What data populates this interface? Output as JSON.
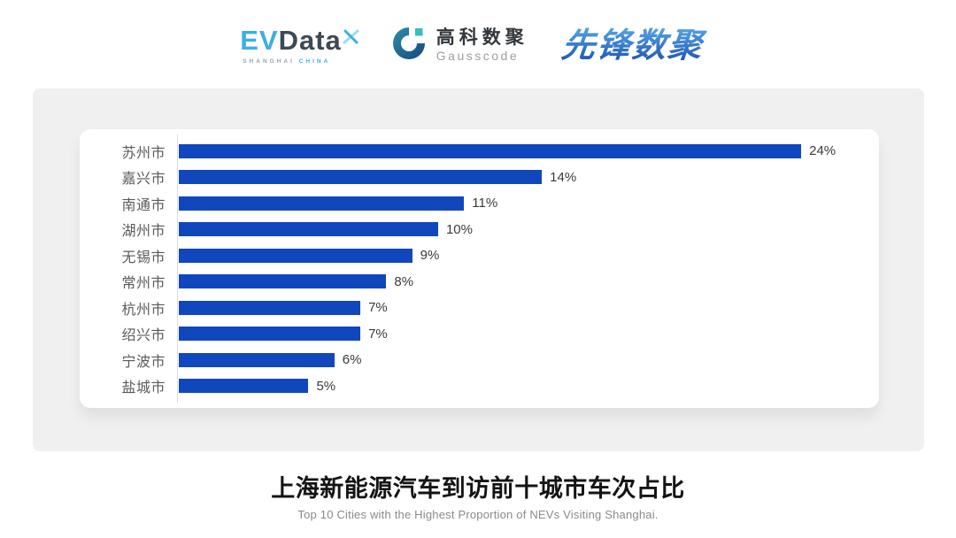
{
  "header": {
    "logos": {
      "evdata": {
        "wordmark_part1": "EV",
        "wordmark_part2": "Data",
        "subtext_part1": "SHANGHAI ",
        "subtext_part2": "CHINA",
        "color_ev": "#3BAFE2",
        "color_data": "#3D4A55"
      },
      "gausscode": {
        "name_cn": "高科数聚",
        "name_en": "Gausscode",
        "icon_color_dark": "#17477E",
        "icon_color_light": "#2C8FA8",
        "icon_accent": "#35C0BE"
      },
      "xianfeng": {
        "text": "先锋数聚",
        "color_top": "#55A4E2",
        "color_bottom": "#1A4FB3"
      }
    }
  },
  "chart_data": {
    "type": "bar",
    "orientation": "horizontal",
    "categories": [
      "苏州市",
      "嘉兴市",
      "南通市",
      "湖州市",
      "无锡市",
      "常州市",
      "杭州市",
      "绍兴市",
      "宁波市",
      "盐城市"
    ],
    "values": [
      24,
      14,
      11,
      10,
      9,
      8,
      7,
      7,
      6,
      5
    ],
    "value_suffix": "%",
    "title": "上海新能源汽车到访前十城市车次占比",
    "subtitle": "Top 10 Cities with the Highest Proportion of  NEVs Visiting Shanghai.",
    "xlabel": "",
    "ylabel": "",
    "xlim": [
      0,
      27
    ],
    "bar_color": "#1147BD",
    "grid": false,
    "legend": false,
    "value_labels": true
  },
  "footer": {
    "title": "上海新能源汽车到访前十城市车次占比",
    "subtitle": "Top 10 Cities with the Highest Proportion of  NEVs Visiting Shanghai."
  }
}
